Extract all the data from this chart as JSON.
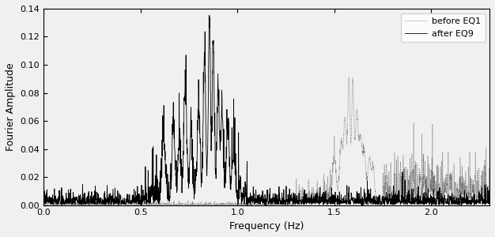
{
  "title": "",
  "xlabel": "Frequency (Hz)",
  "ylabel": "Fourier Amplitude",
  "xlim": [
    0,
    2.3
  ],
  "ylim": [
    0,
    0.14
  ],
  "yticks": [
    0,
    0.02,
    0.04,
    0.06,
    0.08,
    0.1,
    0.12,
    0.14
  ],
  "xticks": [
    0,
    0.5,
    1.0,
    1.5,
    2.0
  ],
  "legend_labels": [
    "before EQ1",
    "after EQ9"
  ],
  "after_color": "#000000",
  "before_color": "#666666",
  "background_color": "#f0f0f0",
  "seed": 7,
  "freq_max": 2.3,
  "n_points": 2300
}
